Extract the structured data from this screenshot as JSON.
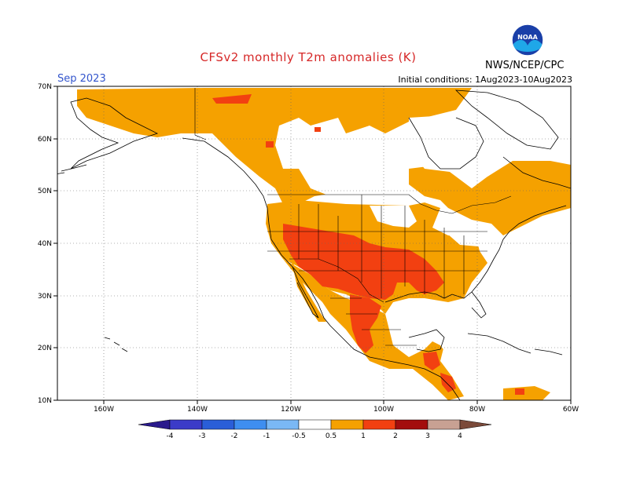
{
  "header": {
    "title": "CFSv2 monthly T2m anomalies (K)",
    "month": "Sep 2023",
    "initial_conditions": "Initial conditions: 1Aug2023-10Aug2023",
    "organization": "NWS/NCEP/CPC",
    "logo_text": "NOAA"
  },
  "map": {
    "projection": "lat-lon",
    "lon_range": [
      -170,
      -60
    ],
    "lat_range": [
      10,
      70
    ],
    "lat_ticks": [
      "10N",
      "20N",
      "30N",
      "40N",
      "50N",
      "60N",
      "70N"
    ],
    "lon_ticks": [
      "160W",
      "140W",
      "120W",
      "100W",
      "80W",
      "60W"
    ],
    "gridlines": "dotted",
    "ocean_color": "#ffffff",
    "coastline_color": "#000000"
  },
  "colorbar": {
    "labels": [
      "-4",
      "-3",
      "-2",
      "-1",
      "-0.5",
      "0.5",
      "1",
      "2",
      "3",
      "4"
    ],
    "bins": [
      {
        "from": null,
        "to": -4,
        "color": "#2a1a8c"
      },
      {
        "from": -4,
        "to": -3,
        "color": "#3b3bc8"
      },
      {
        "from": -3,
        "to": -2,
        "color": "#2a5ed8"
      },
      {
        "from": -2,
        "to": -1,
        "color": "#3e8ef0"
      },
      {
        "from": -1,
        "to": -0.5,
        "color": "#7ab8f5"
      },
      {
        "from": -0.5,
        "to": 0.5,
        "color": "#ffffff"
      },
      {
        "from": 0.5,
        "to": 1,
        "color": "#f5a100"
      },
      {
        "from": 1,
        "to": 2,
        "color": "#f24011"
      },
      {
        "from": 2,
        "to": 3,
        "color": "#a30d0d"
      },
      {
        "from": 3,
        "to": 4,
        "color": "#c8a193"
      },
      {
        "from": 4,
        "to": null,
        "color": "#7b4a3a"
      }
    ]
  },
  "anomaly_regions": [
    {
      "category": "0.5-1",
      "color": "#f5a100",
      "area": "Alaska and northern/western Canada"
    },
    {
      "category": "0.5-1",
      "color": "#f5a100",
      "area": "Western and central United States"
    },
    {
      "category": "0.5-1",
      "color": "#f5a100",
      "area": "Eastern Canada and Maritimes"
    },
    {
      "category": "0.5-1",
      "color": "#f5a100",
      "area": "Mexico and Central America"
    },
    {
      "category": "1-2",
      "color": "#f24011",
      "area": "Southwestern and south-central United States"
    },
    {
      "category": "1-2",
      "color": "#f24011",
      "area": "Central Mexico"
    },
    {
      "category": "1-2",
      "color": "#f24011",
      "area": "Guatemala / southern Mexico"
    },
    {
      "category": "-0.5-0.5",
      "color": "#ffffff",
      "area": "Upper Midwest, Hudson Bay, Northeast US, Gulf of Mexico coast"
    }
  ]
}
